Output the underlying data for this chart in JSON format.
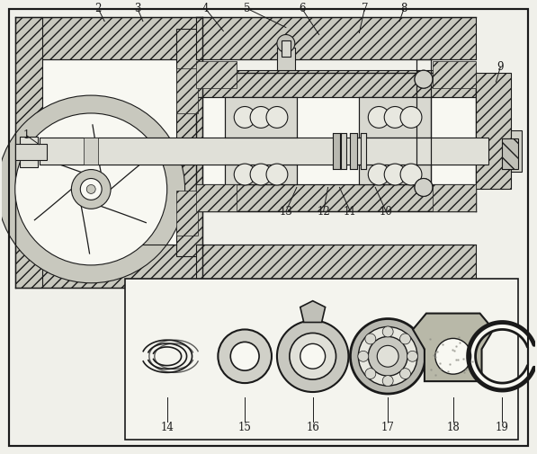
{
  "background_color": "#f0f0ea",
  "line_color": "#1a1a1a",
  "hatch_fill": "#c8c8be",
  "white_fill": "#f8f8f2",
  "light_fill": "#e8e8e0",
  "fig_width": 5.97,
  "fig_height": 5.05,
  "dpi": 100
}
